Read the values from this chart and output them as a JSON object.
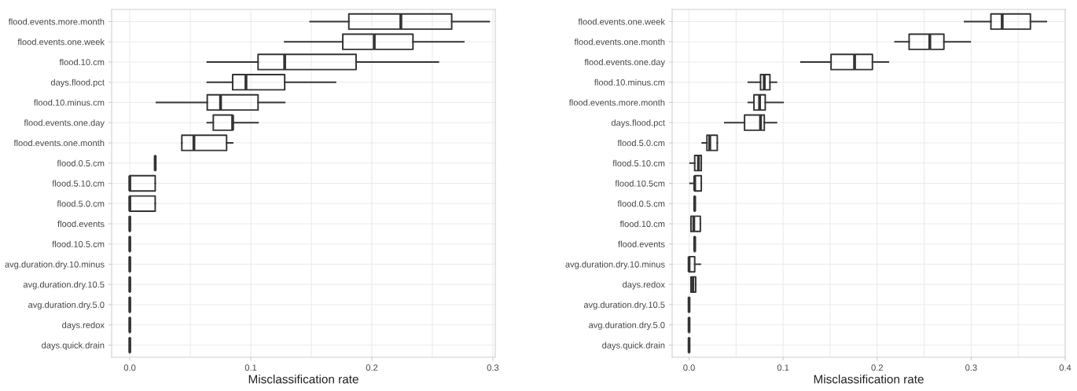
{
  "chart_data": [
    {
      "type": "box",
      "orientation": "horizontal",
      "xlabel": "Misclassification rate",
      "grid": true,
      "color": "#333333",
      "categories": [
        "flood.events.more.month",
        "flood.events.one.week",
        "flood.10.cm",
        "days.flood.pct",
        "flood.10.minus.cm",
        "flood.events.one.day",
        "flood.events.one.month",
        "flood.0.5.cm",
        "flood.5.10.cm",
        "flood.5.0.cm",
        "flood.events",
        "flood.10.5.cm",
        "avg.duration.dry.10.minus",
        "avg.duration.dry.10.5",
        "avg.duration.dry.5.0",
        "days.redox",
        "days.quick.drain"
      ],
      "xlim": [
        -0.015,
        0.302
      ],
      "xticks": [
        {
          "value": 0,
          "label": "0.0"
        },
        0.1,
        0.2,
        0.3
      ],
      "boxes": [
        {
          "low": 0.149,
          "q1": 0.181,
          "median": 0.224,
          "q3": 0.266,
          "high": 0.297
        },
        {
          "low": 0.128,
          "q1": 0.176,
          "median": 0.202,
          "q3": 0.234,
          "high": 0.276
        },
        {
          "low": 0.064,
          "q1": 0.106,
          "median": 0.128,
          "q3": 0.187,
          "high": 0.255
        },
        {
          "low": 0.064,
          "q1": 0.085,
          "median": 0.096,
          "q3": 0.128,
          "high": 0.17
        },
        {
          "low": 0.022,
          "q1": 0.064,
          "median": 0.075,
          "q3": 0.106,
          "high": 0.128
        },
        {
          "low": 0.064,
          "q1": 0.069,
          "median": 0.085,
          "q3": 0.085,
          "high": 0.106
        },
        {
          "low": 0.043,
          "q1": 0.043,
          "median": 0.053,
          "q3": 0.08,
          "high": 0.085
        },
        {
          "low": 0.021,
          "q1": 0.021,
          "median": 0.021,
          "q3": 0.021,
          "high": 0.021
        },
        {
          "low": 0,
          "q1": 0,
          "median": 0,
          "q3": 0.021,
          "high": 0.021
        },
        {
          "low": 0,
          "q1": 0,
          "median": 0,
          "q3": 0.021,
          "high": 0.021
        },
        {
          "low": 0,
          "q1": 0,
          "median": 0,
          "q3": 0,
          "high": 0
        },
        {
          "low": 0,
          "q1": 0,
          "median": 0,
          "q3": 0,
          "high": 0
        },
        {
          "low": 0,
          "q1": 0,
          "median": 0,
          "q3": 0,
          "high": 0
        },
        {
          "low": 0,
          "q1": 0,
          "median": 0,
          "q3": 0,
          "high": 0
        },
        {
          "low": 0,
          "q1": 0,
          "median": 0,
          "q3": 0,
          "high": 0
        },
        {
          "low": 0,
          "q1": 0,
          "median": 0,
          "q3": 0,
          "high": 0
        },
        {
          "low": 0,
          "q1": 0,
          "median": 0,
          "q3": 0,
          "high": 0
        }
      ]
    },
    {
      "type": "box",
      "orientation": "horizontal",
      "xlabel": "Misclassification rate",
      "grid": true,
      "color": "#333333",
      "categories": [
        "flood.events.one.week",
        "flood.events.one.month",
        "flood.events.one.day",
        "flood.10.minus.cm",
        "flood.events.more.month",
        "days.flood.pct",
        "flood.5.0.cm",
        "flood.5.10.cm",
        "flood.10.5cm",
        "flood.0.5.cm",
        "flood.10.cm",
        "flood.events",
        "avg.duration.dry.10.minus",
        "days.redox",
        "avg.duration.dry.10.5",
        "avg.duration.dry.5.0",
        "days.quick.drain"
      ],
      "xlim": [
        -0.018,
        0.4
      ],
      "xticks": [
        {
          "value": 0,
          "label": "0.0"
        },
        0.1,
        0.2,
        0.3,
        0.4
      ],
      "boxes": [
        {
          "low": 0.293,
          "q1": 0.321,
          "median": 0.333,
          "q3": 0.363,
          "high": 0.38
        },
        {
          "low": 0.219,
          "q1": 0.234,
          "median": 0.256,
          "q3": 0.271,
          "high": 0.299
        },
        {
          "low": 0.119,
          "q1": 0.151,
          "median": 0.176,
          "q3": 0.195,
          "high": 0.212
        },
        {
          "low": 0.063,
          "q1": 0.076,
          "median": 0.08,
          "q3": 0.086,
          "high": 0.093
        },
        {
          "low": 0.063,
          "q1": 0.069,
          "median": 0.075,
          "q3": 0.081,
          "high": 0.1
        },
        {
          "low": 0.038,
          "q1": 0.059,
          "median": 0.076,
          "q3": 0.08,
          "high": 0.093
        },
        {
          "low": 0.014,
          "q1": 0.019,
          "median": 0.022,
          "q3": 0.03,
          "high": 0.03
        },
        {
          "low": 0.001,
          "q1": 0.006,
          "median": 0.01,
          "q3": 0.013,
          "high": 0.013
        },
        {
          "low": 0.001,
          "q1": 0.006,
          "median": 0.006,
          "q3": 0.013,
          "high": 0.013
        },
        {
          "low": 0.006,
          "q1": 0.006,
          "median": 0.006,
          "q3": 0.006,
          "high": 0.006
        },
        {
          "low": 0.002,
          "q1": 0.002,
          "median": 0.005,
          "q3": 0.012,
          "high": 0.012
        },
        {
          "low": 0.006,
          "q1": 0.006,
          "median": 0.006,
          "q3": 0.006,
          "high": 0.006
        },
        {
          "low": 0,
          "q1": 0,
          "median": 0,
          "q3": 0.006,
          "high": 0.012
        },
        {
          "low": 0.002,
          "q1": 0.002,
          "median": 0.004,
          "q3": 0.007,
          "high": 0.007
        },
        {
          "low": 0,
          "q1": 0,
          "median": 0,
          "q3": 0,
          "high": 0
        },
        {
          "low": 0,
          "q1": 0,
          "median": 0,
          "q3": 0,
          "high": 0
        },
        {
          "low": 0,
          "q1": 0,
          "median": 0,
          "q3": 0,
          "high": 0
        }
      ]
    }
  ]
}
